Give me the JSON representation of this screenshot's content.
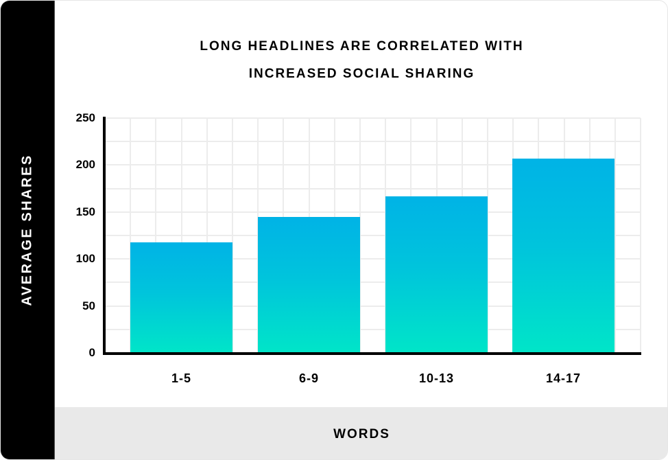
{
  "chart": {
    "title_line1": "LONG HEADLINES ARE CORRELATED WITH",
    "title_line2": "INCREASED SOCIAL SHARING",
    "ylabel": "AVERAGE SHARES",
    "xlabel": "WORDS",
    "yticks": [
      "250",
      "200",
      "150",
      "100",
      "50",
      "0"
    ],
    "xticks": [
      "1-5",
      "6-9",
      "10-13",
      "14-17"
    ],
    "colors": {
      "bar_top": "#00b3e6",
      "bar_bottom": "#00e5c8",
      "sidebar": "#000000",
      "footer": "#e9e9e9",
      "grid": "#ececec"
    }
  },
  "chart_data": {
    "type": "bar",
    "title": "LONG HEADLINES ARE CORRELATED WITH INCREASED SOCIAL SHARING",
    "categories": [
      "1-5",
      "6-9",
      "10-13",
      "14-17"
    ],
    "values": [
      118,
      145,
      167,
      207
    ],
    "xlabel": "WORDS",
    "ylabel": "AVERAGE SHARES",
    "ylim": [
      0,
      250
    ],
    "yticks": [
      0,
      50,
      100,
      150,
      200,
      250
    ],
    "grid": true,
    "legend": null
  }
}
